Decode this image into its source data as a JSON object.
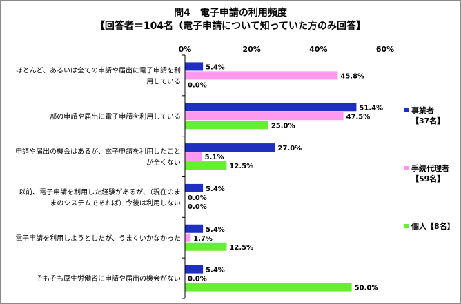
{
  "title_line1": "問4　電子申請の利用頻度",
  "title_line2": "【回答者＝104名（電子申請について知っていた方のみ回答】",
  "chart_data": {
    "type": "bar",
    "orientation": "horizontal",
    "categories": [
      [
        "ほとんど、あるいは全ての申請や届出に電子申請を利",
        "用している"
      ],
      [
        "一部の申請や届出に電子申請を利用している"
      ],
      [
        "申請や届出の機会はあるが、電子申請を利用したこと",
        "が全くない"
      ],
      [
        "以前、電子申請を利用した経験があるが、（現在のま",
        "まのシステムであれば）今後は利用しない"
      ],
      [
        "電子申請を利用しようとしたが、うまくいかなかった"
      ],
      [
        "そもそも厚生労働省に申請や届出の機会がない"
      ]
    ],
    "series": [
      {
        "name": "事業者",
        "name2": "【37名】",
        "color": "#1f2fbf",
        "values": [
          5.4,
          51.4,
          27.0,
          5.4,
          5.4,
          5.4
        ]
      },
      {
        "name": "手続代理者",
        "name2": "【59名】",
        "color": "#ff99ee",
        "values": [
          45.8,
          47.5,
          5.1,
          0.0,
          1.7,
          0.0
        ]
      },
      {
        "name": "個人【8名】",
        "name2": "",
        "color": "#66ee33",
        "values": [
          0.0,
          25.0,
          12.5,
          0.0,
          12.5,
          50.0
        ]
      }
    ],
    "xlim": [
      0,
      60
    ],
    "xticks": [
      0,
      20,
      40,
      60
    ],
    "tick_suffix": "%",
    "value_suffix": "%",
    "value_decimals": 1,
    "grid": false,
    "legend_position": "right"
  }
}
